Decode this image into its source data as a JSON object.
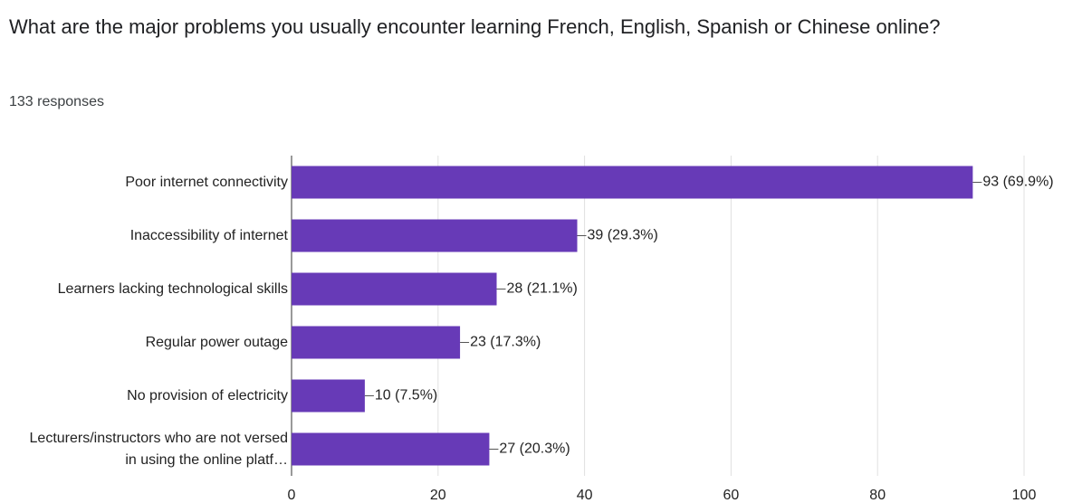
{
  "chart_data": {
    "type": "bar",
    "orientation": "horizontal",
    "title": "What are the major problems you usually encounter learning French, English, Spanish or Chinese online?",
    "subtitle": "133 responses",
    "categories": [
      "Poor internet connectivity",
      "Inaccessibility of internet",
      "Learners lacking technological skills",
      "Regular power outage",
      "No provision of electricity",
      "Lecturers/instructors who are not versed in using the online platf…"
    ],
    "values": [
      93,
      39,
      28,
      23,
      10,
      27
    ],
    "value_labels": [
      "93 (69.9%)",
      "39 (29.3%)",
      "28 (21.1%)",
      "23 (17.3%)",
      "10 (7.5%)",
      "27 (20.3%)"
    ],
    "color": "#673ab7",
    "xlim": [
      0,
      100
    ],
    "xticks": [
      0,
      20,
      40,
      60,
      80,
      100
    ],
    "grid": true
  }
}
